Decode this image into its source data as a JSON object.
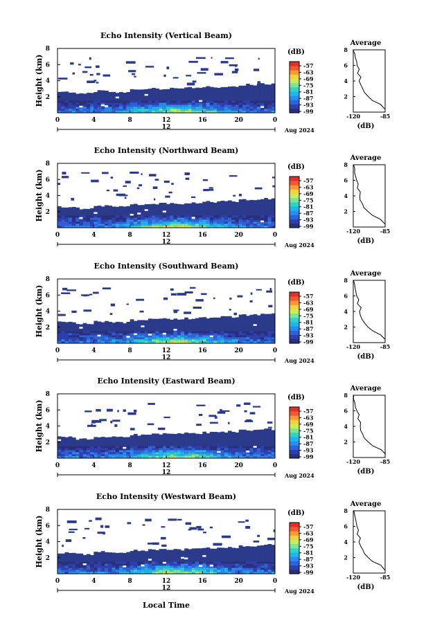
{
  "colors": {
    "background": "#ffffff",
    "low_echo": "#2b3a8a",
    "colorbar": [
      "#2b2f7a",
      "#2f3fb0",
      "#2e63d8",
      "#2a8cee",
      "#1fb6ee",
      "#2fd3c8",
      "#7fe39a",
      "#c9ec5e",
      "#f3d23d",
      "#f79a33",
      "#ef5a2e",
      "#e0302a"
    ]
  },
  "page": {
    "xaxis_title": "Local Time"
  },
  "panels": [
    {
      "title": "Echo Intensity (Vertical Beam)",
      "ylabel": "Height (km)",
      "yticks": [
        "2",
        "4",
        "6",
        "8"
      ],
      "xticks": [
        "0",
        "4",
        "8",
        "12",
        "16",
        "20",
        "0"
      ],
      "date_tick": "12",
      "date_label": "Aug 2024",
      "colorbar": {
        "unit": "(dB)",
        "ticks": [
          "-57",
          "-63",
          "-69",
          "-75",
          "-81",
          "-87",
          "-93",
          "-99"
        ]
      },
      "average": {
        "title": "Average",
        "xlabel": "(dB)",
        "xticks": [
          "-120",
          "-85"
        ],
        "yticks": [
          "2",
          "4",
          "6",
          "8"
        ]
      }
    },
    {
      "title": "Echo Intensity (Northward Beam)",
      "ylabel": "Height (km)",
      "yticks": [
        "2",
        "4",
        "6",
        "8"
      ],
      "xticks": [
        "0",
        "4",
        "8",
        "12",
        "16",
        "20",
        "0"
      ],
      "date_tick": "12",
      "date_label": "Aug 2024",
      "colorbar": {
        "unit": "(dB)",
        "ticks": [
          "-57",
          "-63",
          "-69",
          "-75",
          "-81",
          "-87",
          "-93",
          "-99"
        ]
      },
      "average": {
        "title": "Average",
        "xlabel": "(dB)",
        "xticks": [
          "-120",
          "-85"
        ],
        "yticks": [
          "2",
          "4",
          "6",
          "8"
        ]
      }
    },
    {
      "title": "Echo Intensity (Southward Beam)",
      "ylabel": "Height (km)",
      "yticks": [
        "2",
        "4",
        "6",
        "8"
      ],
      "xticks": [
        "0",
        "4",
        "8",
        "12",
        "16",
        "20",
        "0"
      ],
      "date_tick": "12",
      "date_label": "Aug 2024",
      "colorbar": {
        "unit": "(dB)",
        "ticks": [
          "-57",
          "-63",
          "-69",
          "-75",
          "-81",
          "-87",
          "-93",
          "-99"
        ]
      },
      "average": {
        "title": "Average",
        "xlabel": "(dB)",
        "xticks": [
          "-120",
          "-85"
        ],
        "yticks": [
          "2",
          "4",
          "6",
          "8"
        ]
      }
    },
    {
      "title": "Echo Intensity (Eastward Beam)",
      "ylabel": "Height (km)",
      "yticks": [
        "2",
        "4",
        "6",
        "8"
      ],
      "xticks": [
        "0",
        "4",
        "8",
        "12",
        "16",
        "20",
        "0"
      ],
      "date_tick": "12",
      "date_label": "Aug 2024",
      "colorbar": {
        "unit": "(dB)",
        "ticks": [
          "-57",
          "-63",
          "-69",
          "-75",
          "-81",
          "-87",
          "-93",
          "-99"
        ]
      },
      "average": {
        "title": "Average",
        "xlabel": "(dB)",
        "xticks": [
          "-120",
          "-85"
        ],
        "yticks": [
          "2",
          "4",
          "6",
          "8"
        ]
      }
    },
    {
      "title": "Echo Intensity (Westward Beam)",
      "ylabel": "Height (km)",
      "yticks": [
        "2",
        "4",
        "6",
        "8"
      ],
      "xticks": [
        "0",
        "4",
        "8",
        "12",
        "16",
        "20",
        "0"
      ],
      "date_tick": "12",
      "date_label": "Aug 2024",
      "colorbar": {
        "unit": "(dB)",
        "ticks": [
          "-57",
          "-63",
          "-69",
          "-75",
          "-81",
          "-87",
          "-93",
          "-99"
        ]
      },
      "average": {
        "title": "Average",
        "xlabel": "(dB)",
        "xticks": [
          "-120",
          "-85"
        ],
        "yticks": [
          "2",
          "4",
          "6",
          "8"
        ]
      }
    }
  ],
  "chart_data": {
    "type": "heatmap",
    "panels": 5,
    "x_range_hours": [
      0,
      24
    ],
    "y_range_km": [
      0,
      8
    ],
    "color_range_db": [
      -99,
      -57
    ],
    "low_layer_top_km": [
      2.6,
      2.4,
      2.7,
      2.6,
      2.9,
      3.0,
      3.0,
      3.1,
      3.2,
      3.3,
      3.5,
      3.6
    ],
    "profile_heights_km": [
      0.4,
      1,
      1.5,
      2,
      2.5,
      3,
      3.5,
      4,
      4.5,
      5,
      5.5,
      6,
      6.5,
      7,
      7.5,
      8
    ],
    "profile_db": [
      -85,
      -90,
      -99,
      -104,
      -108,
      -110,
      -112,
      -113,
      -112,
      -115,
      -114,
      -116,
      -117,
      -118,
      -119,
      -120
    ]
  }
}
